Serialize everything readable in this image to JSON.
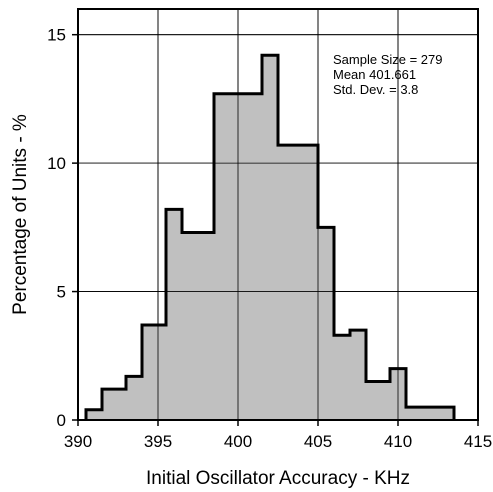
{
  "chart_data": {
    "type": "bar",
    "xlabel": "Initial Oscillator Accuracy - KHz",
    "ylabel": "Percentage of Units - %",
    "xlim": [
      390,
      415
    ],
    "ylim": [
      0,
      16
    ],
    "xticks": [
      390,
      395,
      400,
      405,
      410,
      415
    ],
    "yticks": [
      0,
      5,
      10,
      15
    ],
    "grid": true,
    "bins": [
      {
        "start": 390.5,
        "end": 391.5,
        "value": 0.4
      },
      {
        "start": 391.5,
        "end": 393.0,
        "value": 1.2
      },
      {
        "start": 393.0,
        "end": 394.0,
        "value": 1.7
      },
      {
        "start": 394.0,
        "end": 395.5,
        "value": 3.7
      },
      {
        "start": 395.5,
        "end": 396.5,
        "value": 8.2
      },
      {
        "start": 396.5,
        "end": 398.5,
        "value": 7.3
      },
      {
        "start": 398.5,
        "end": 401.5,
        "value": 12.7
      },
      {
        "start": 401.5,
        "end": 402.5,
        "value": 14.2
      },
      {
        "start": 402.5,
        "end": 405.0,
        "value": 10.7
      },
      {
        "start": 405.0,
        "end": 406.0,
        "value": 7.5
      },
      {
        "start": 406.0,
        "end": 407.0,
        "value": 3.3
      },
      {
        "start": 407.0,
        "end": 408.0,
        "value": 3.5
      },
      {
        "start": 408.0,
        "end": 409.5,
        "value": 1.5
      },
      {
        "start": 409.5,
        "end": 410.5,
        "value": 2.0
      },
      {
        "start": 410.5,
        "end": 412.5,
        "value": 0.5
      },
      {
        "start": 412.5,
        "end": 413.5,
        "value": 0.5
      }
    ],
    "annotations": [
      "Sample Size = 279",
      "Mean 401.661",
      "Std. Dev. = 3.8"
    ],
    "bar_fill": "#c0c0c0",
    "outline_color": "#000000"
  }
}
